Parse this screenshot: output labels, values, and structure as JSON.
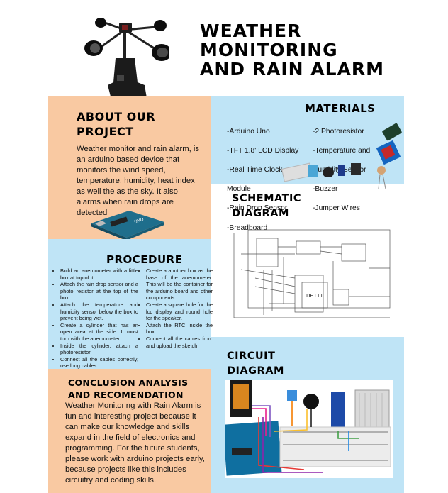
{
  "title": [
    "WEATHER",
    "MONITORING",
    "AND RAIN ALARM"
  ],
  "about": {
    "heading": [
      "ABOUT OUR",
      "PROJECT"
    ],
    "text": "Weather monitor and rain alarm, is an arduino based device that monitors the wind speed, temperature, humidity, heat index as well the as the sky. It also alarms when rain drops are detected"
  },
  "materials": {
    "heading": "MATERIALS",
    "col1": [
      "-Arduino Uno",
      "-TFT 1.8' LCD Display",
      "-Real Time Clock",
      "  Module",
      "-Rain Drop Sensor",
      "-Breadboard"
    ],
    "col2": [
      "-2 Photoresistor",
      "-Temperature and",
      "  Humidity Sensor",
      "-Buzzer",
      "-Jumper Wires"
    ]
  },
  "schematic": {
    "heading": [
      "SCHEMATIC",
      "DIAGRAM"
    ],
    "chip_label": "DHT11"
  },
  "procedure": {
    "heading": "PROCEDURE",
    "col1": [
      "Build an anemometer with a little box at top of it.",
      "Attach the rain drop sensor and a photo resistor at the top of the box.",
      "Attach the temperature and humidity sensor below the box to prevent being wet.",
      "Create a cylinder that has an open area at the side. It must turn with the anemometer.",
      "Inside the cylinder, attach a photoresistor.",
      "Connect all the cables correctly, use long cables."
    ],
    "col2": [
      "Create a another box as the base of the anemometer. This will be the container for the arduino board and other components.",
      "Create a square hole for the lcd display and round hole for the speaker.",
      "Attach the RTC inside the box.",
      "Connect all the cables from and upload the sketch."
    ]
  },
  "circuit": {
    "heading": [
      "CIRCUIT",
      "DIAGRAM"
    ]
  },
  "conclusion": {
    "heading": [
      "CONCLUSION ANALYSIS",
      "AND RECOMENDATION"
    ],
    "text": "Weather Monitoring with Rain Alarm is fun and interesting project because it can make our knowledge and skills expand in the field of electronics and programming.  For the future students, please work with arduino projects early, because projects like this includes circuitry and coding skills."
  },
  "colors": {
    "peach": "#f9c9a2",
    "blue": "#bfe4f6"
  }
}
